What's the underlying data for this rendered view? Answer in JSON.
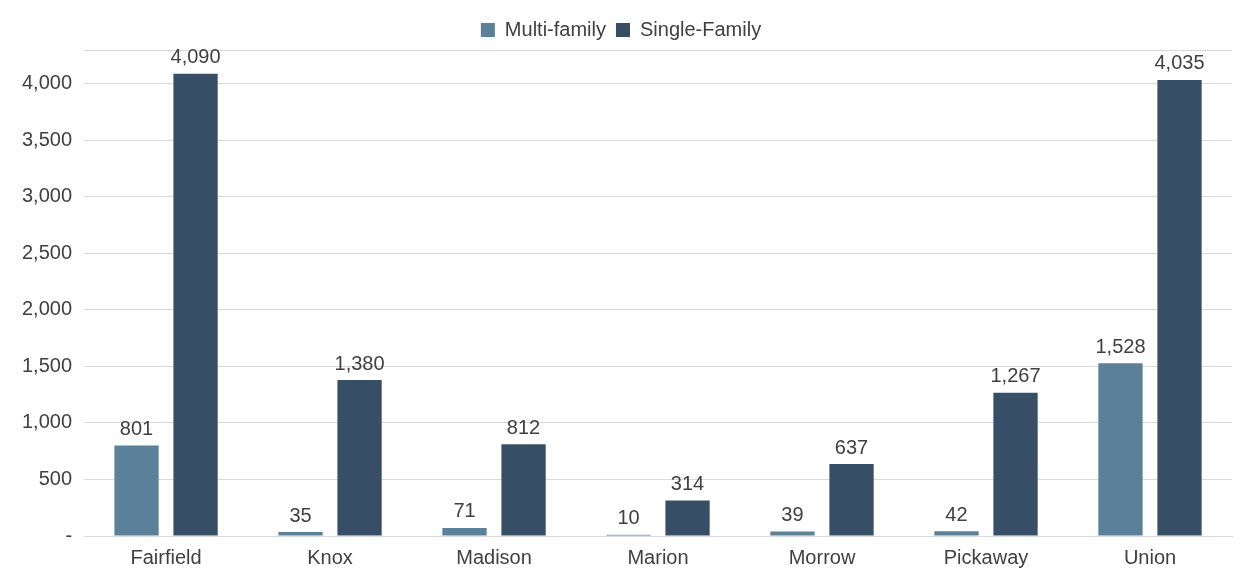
{
  "chart_data": {
    "type": "bar",
    "categories": [
      "Fairfield",
      "Knox",
      "Madison",
      "Marion",
      "Morrow",
      "Pickaway",
      "Union"
    ],
    "series": [
      {
        "name": "Multi-family",
        "color": "#5b8099",
        "values": [
          801,
          35,
          71,
          10,
          39,
          42,
          1528
        ],
        "value_labels": [
          "801",
          "35",
          "71",
          "10",
          "39",
          "42",
          "1,528"
        ]
      },
      {
        "name": "Single-Family",
        "color": "#374f66",
        "values": [
          4090,
          1380,
          812,
          314,
          637,
          1267,
          4035
        ],
        "value_labels": [
          "4,090",
          "1,380",
          "812",
          "314",
          "637",
          "1,267",
          "4,035"
        ]
      }
    ],
    "ylim": [
      0,
      4300
    ],
    "yticks": [
      {
        "value": 0,
        "label": "-"
      },
      {
        "value": 500,
        "label": "500"
      },
      {
        "value": 1000,
        "label": "1,000"
      },
      {
        "value": 1500,
        "label": "1,500"
      },
      {
        "value": 2000,
        "label": "2,000"
      },
      {
        "value": 2500,
        "label": "2,500"
      },
      {
        "value": 3000,
        "label": "3,000"
      },
      {
        "value": 3500,
        "label": "3,500"
      },
      {
        "value": 4000,
        "label": "4,000"
      }
    ],
    "grid": "y",
    "legend": "top"
  }
}
